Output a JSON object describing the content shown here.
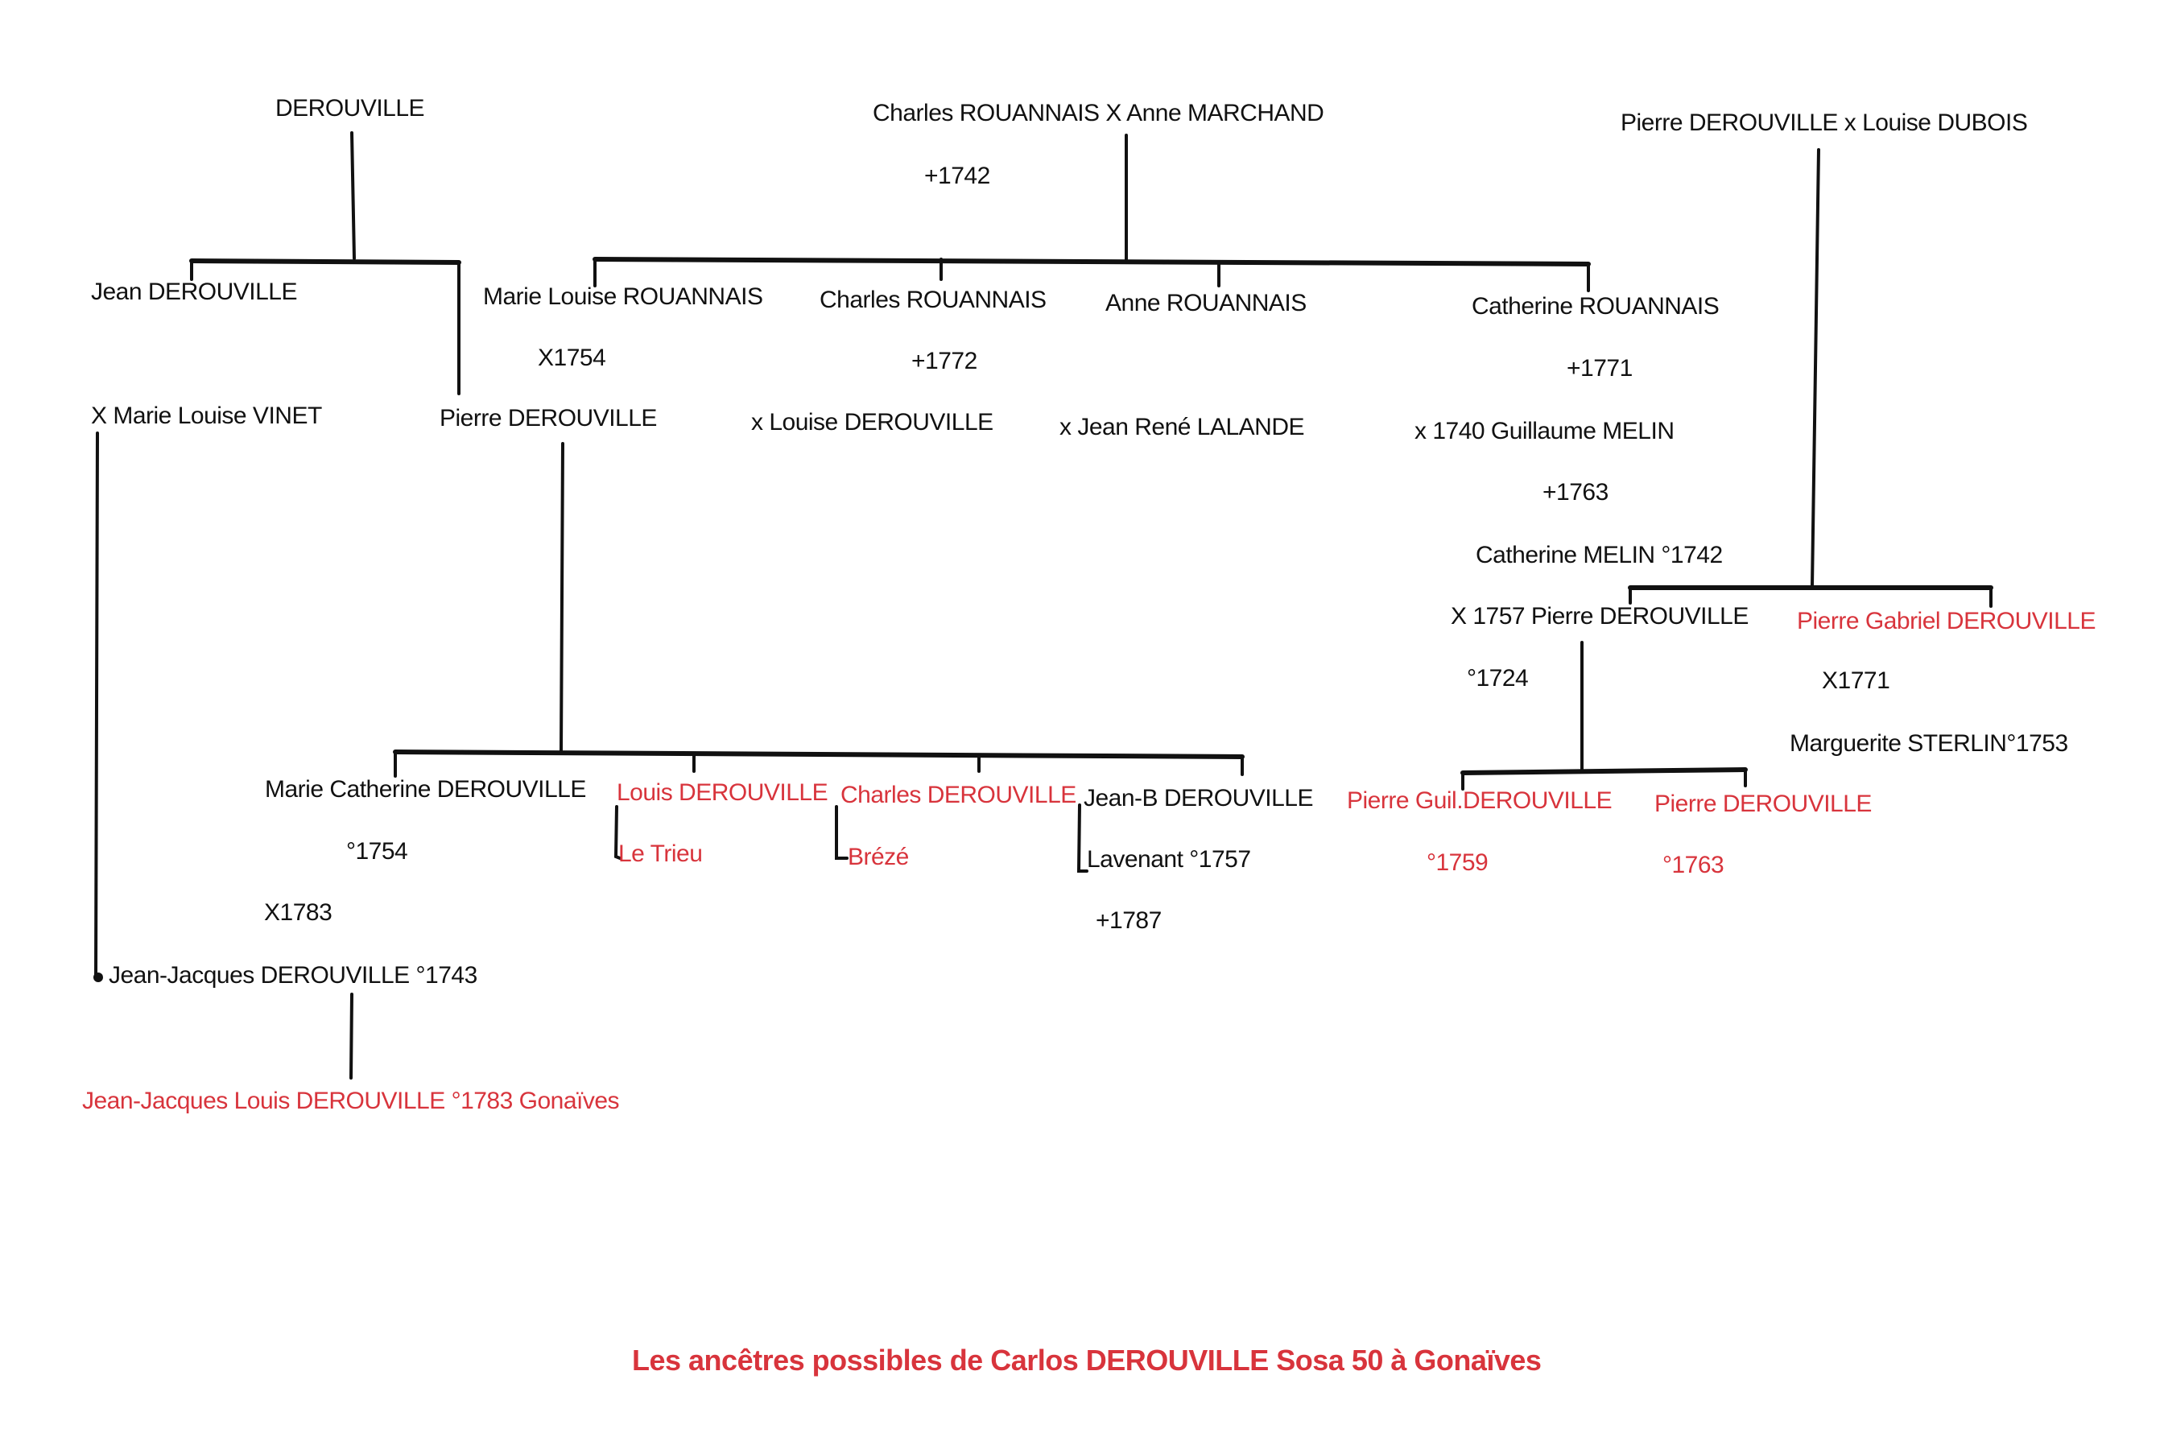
{
  "colors": {
    "text": "#111111",
    "highlight": "#d8343c"
  },
  "nodes": [
    {
      "text": "DEROUVILLE"
    },
    {
      "text": "Charles ROUANNAIS X Anne MARCHAND"
    },
    {
      "text": "+1742"
    },
    {
      "text": "Pierre DEROUVILLE x Louise DUBOIS"
    },
    {
      "text": "Jean DEROUVILLE"
    },
    {
      "text": "Marie Louise ROUANNAIS"
    },
    {
      "text": "Charles ROUANNAIS"
    },
    {
      "text": "Anne ROUANNAIS"
    },
    {
      "text": "Catherine ROUANNAIS"
    },
    {
      "text": "X1754"
    },
    {
      "text": "+1772"
    },
    {
      "text": "+1771"
    },
    {
      "text": "X Marie Louise VINET"
    },
    {
      "text": "Pierre DEROUVILLE"
    },
    {
      "text": "x Louise DEROUVILLE"
    },
    {
      "text": "x Jean René LALANDE"
    },
    {
      "text": "x 1740 Guillaume MELIN"
    },
    {
      "text": "+1763"
    },
    {
      "text": "Catherine MELIN °1742"
    },
    {
      "text": "X 1757 Pierre DEROUVILLE"
    },
    {
      "text": "Pierre Gabriel DEROUVILLE",
      "highlight": true
    },
    {
      "text": "°1724"
    },
    {
      "text": "X1771"
    },
    {
      "text": "Marguerite STERLIN°1753"
    },
    {
      "text": "Marie Catherine DEROUVILLE"
    },
    {
      "text": "Louis DEROUVILLE",
      "highlight": true
    },
    {
      "text": "Charles DEROUVILLE",
      "highlight": true
    },
    {
      "text": "Jean-B DEROUVILLE"
    },
    {
      "text": "Pierre Guil.DEROUVILLE",
      "highlight": true
    },
    {
      "text": "Pierre DEROUVILLE",
      "highlight": true
    },
    {
      "text": "°1754"
    },
    {
      "text": "Le Trieu",
      "highlight": true
    },
    {
      "text": "Brézé",
      "highlight": true
    },
    {
      "text": "Lavenant °1757"
    },
    {
      "text": "°1759",
      "highlight": true
    },
    {
      "text": "°1763",
      "highlight": true
    },
    {
      "text": "X1783"
    },
    {
      "text": "+1787"
    },
    {
      "text": "Jean-Jacques DEROUVILLE °1743"
    },
    {
      "text": "Jean-Jacques Louis DEROUVILLE °1783 Gonaïves",
      "highlight": true
    }
  ],
  "caption": "Les ancêtres possibles de Carlos DEROUVILLE Sosa 50 à Gonaïves"
}
